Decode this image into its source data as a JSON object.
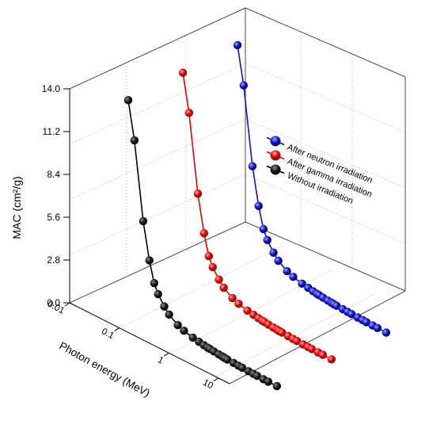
{
  "chart_data": {
    "type": "scatter",
    "projection": "3d",
    "zlabel": "MAC (cm²/g)",
    "xlabel": "Photon energy (MeV)",
    "zlim": [
      0,
      14
    ],
    "z_ticks": [
      "0.0",
      "2.8",
      "5.6",
      "8.4",
      "11.2",
      "14.0"
    ],
    "x_scale": "log",
    "x_ticks": [
      "0.01",
      "0.1",
      "1",
      "10"
    ],
    "xlim": [
      0.01,
      15
    ],
    "grid": true,
    "legend_position": "right",
    "energies": [
      0.015,
      0.02,
      0.03,
      0.04,
      0.05,
      0.06,
      0.08,
      0.1,
      0.15,
      0.2,
      0.3,
      0.4,
      0.5,
      0.6,
      0.662,
      0.8,
      1.0,
      1.173,
      1.25,
      1.332,
      1.5,
      2.0,
      2.5,
      3.0,
      4.0,
      5.0,
      6.0,
      8.0,
      10.0,
      15.0
    ],
    "series": [
      {
        "name": "Without irradiation",
        "color": "#000000",
        "values": [
          13.86,
          11.43,
          6.44,
          4.07,
          2.74,
          2.15,
          1.55,
          1.18,
          0.78,
          0.62,
          0.46,
          0.39,
          0.33,
          0.29,
          0.28,
          0.25,
          0.22,
          0.2,
          0.19,
          0.18,
          0.17,
          0.15,
          0.13,
          0.12,
          0.1,
          0.09,
          0.085,
          0.075,
          0.07,
          0.065
        ]
      },
      {
        "name": "After gamma irradiation",
        "color": "#e00000",
        "values": [
          13.9,
          11.48,
          6.48,
          4.1,
          2.76,
          2.17,
          1.56,
          1.19,
          0.79,
          0.63,
          0.47,
          0.4,
          0.34,
          0.3,
          0.285,
          0.255,
          0.225,
          0.205,
          0.195,
          0.185,
          0.175,
          0.155,
          0.135,
          0.125,
          0.105,
          0.095,
          0.09,
          0.08,
          0.072,
          0.066
        ]
      },
      {
        "name": "After neutron irradiation",
        "color": "#1010c8",
        "values": [
          13.95,
          11.52,
          6.52,
          4.13,
          2.78,
          2.19,
          1.57,
          1.2,
          0.8,
          0.64,
          0.48,
          0.41,
          0.35,
          0.31,
          0.29,
          0.26,
          0.23,
          0.21,
          0.2,
          0.19,
          0.18,
          0.16,
          0.14,
          0.13,
          0.11,
          0.1,
          0.092,
          0.082,
          0.074,
          0.067
        ]
      }
    ]
  }
}
